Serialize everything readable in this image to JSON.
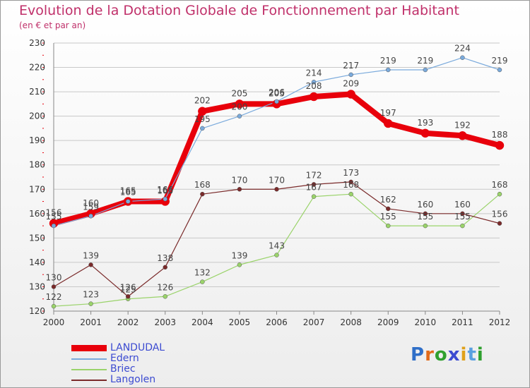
{
  "title": "Evolution de la Dotation Globale de Fonctionnement par Habitant",
  "subtitle": "(en € et par an)",
  "brand": {
    "text": "Proxiti",
    "letters": [
      "P",
      "r",
      "o",
      "x",
      "i",
      "t",
      "i"
    ],
    "letter_colors": [
      "#2f6fc8",
      "#e06a1a",
      "#2fa02f",
      "#3c4bd1",
      "#e0a11a",
      "#5aa0e0",
      "#2fa02f"
    ]
  },
  "colors": {
    "LANDUDAL": "#e8000b",
    "Edern": "#7aaadc",
    "Briec": "#9ad36a",
    "Langolen": "#7a2a2a",
    "axis_text": "#333333",
    "grid": "#c8c8c8",
    "tick_mark": "#e8000b"
  },
  "chart_data": {
    "type": "line",
    "x": [
      "2000",
      "2001",
      "2002",
      "2003",
      "2004",
      "2005",
      "2006",
      "2007",
      "2008",
      "2009",
      "2010",
      "2011",
      "2012"
    ],
    "ylim": [
      120,
      230
    ],
    "yticks": [
      120,
      130,
      140,
      150,
      160,
      170,
      180,
      190,
      200,
      210,
      220,
      230
    ],
    "grid": true,
    "legend_position": "bottom-left",
    "series": [
      {
        "name": "LANDUDAL",
        "values": [
          156,
          160,
          165,
          165,
          202,
          205,
          205,
          208,
          209,
          197,
          193,
          192,
          188
        ]
      },
      {
        "name": "Edern",
        "values": [
          155,
          159,
          165,
          166,
          195,
          200,
          206,
          214,
          217,
          219,
          219,
          224,
          219
        ]
      },
      {
        "name": "Briec",
        "values": [
          122,
          123,
          125,
          126,
          132,
          139,
          143,
          167,
          168,
          155,
          155,
          155,
          168
        ]
      },
      {
        "name": "Langolen",
        "values": [
          130,
          139,
          126,
          138,
          168,
          170,
          170,
          172,
          173,
          162,
          160,
          160,
          156
        ]
      }
    ]
  }
}
